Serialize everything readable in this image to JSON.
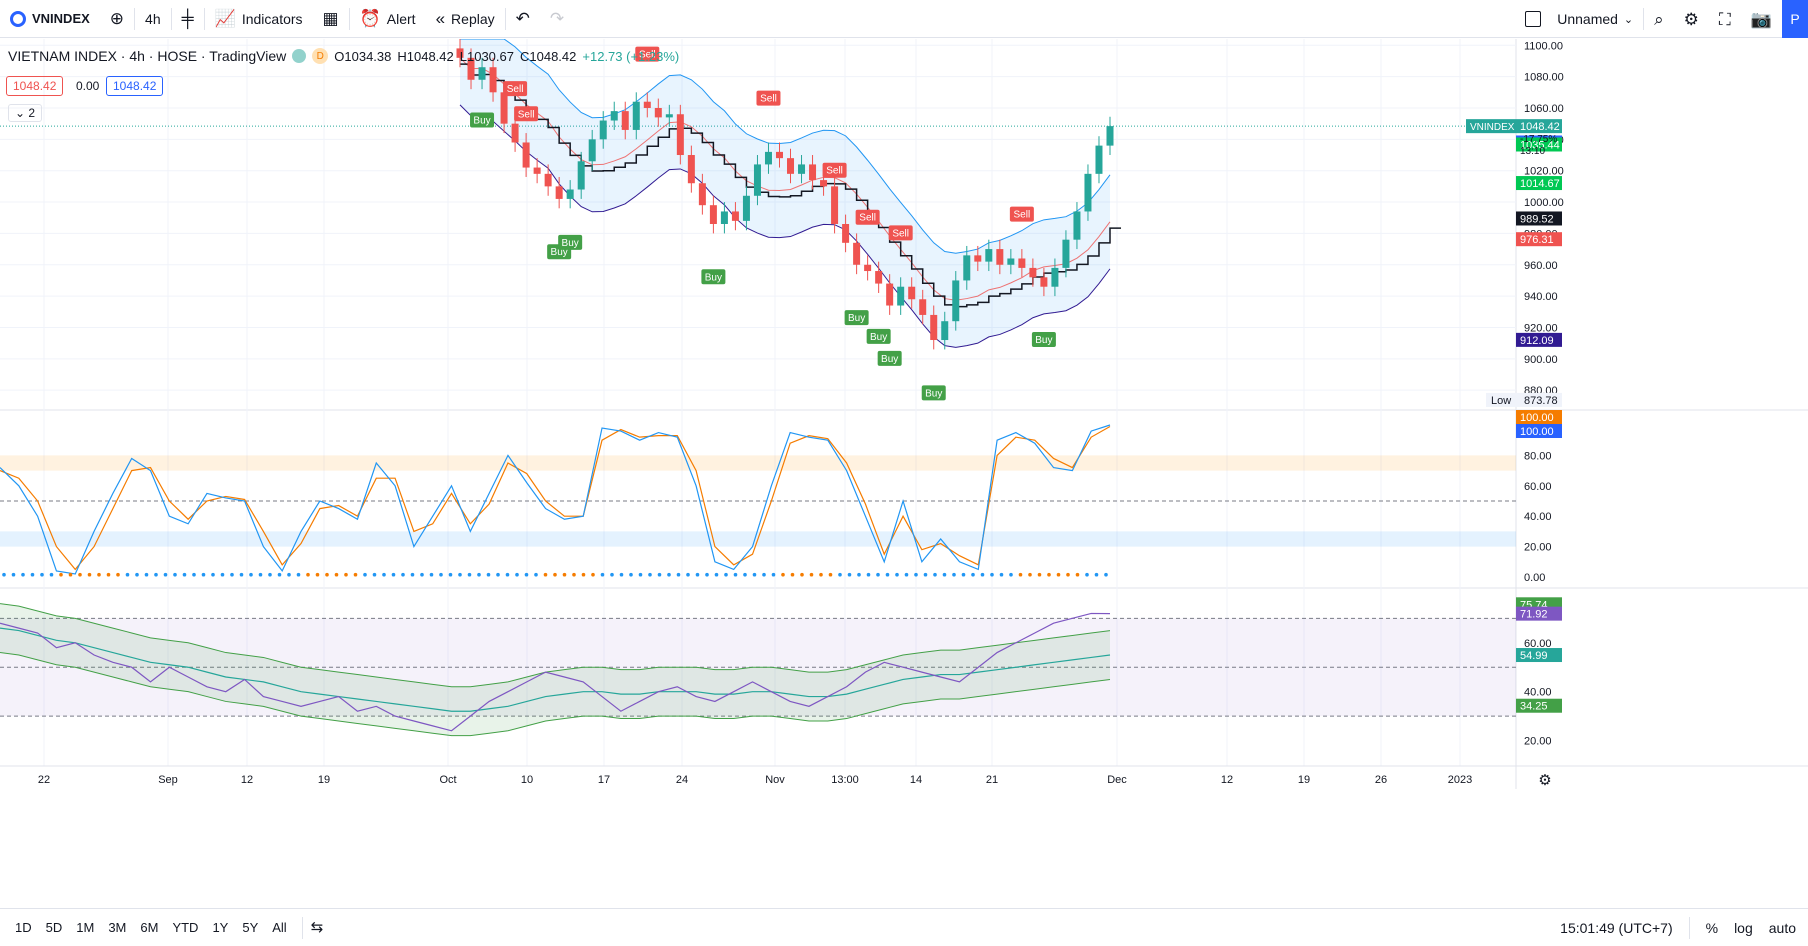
{
  "toolbar": {
    "symbol": "VNINDEX",
    "interval": "4h",
    "indicators_label": "Indicators",
    "alert_label": "Alert",
    "replay_label": "Replay",
    "layout_name": "Unnamed",
    "publish_label": "P"
  },
  "legend": {
    "title": "VIETNAM INDEX · 4h · HOSE · TradingView",
    "d_badge": "D",
    "open": "O1034.38",
    "high": "H1048.42",
    "low": "L1030.67",
    "close": "C1048.42",
    "change": "+12.73 (+1.23%)",
    "bid": "1048.42",
    "spread": "0.00",
    "ask": "1048.42",
    "indicator_count": "2"
  },
  "colors": {
    "up": "#26a69a",
    "down": "#ef5350",
    "accent": "#2962ff"
  },
  "chart_data": {
    "type": "candlestick",
    "symbol": "VNINDEX",
    "last_price": "1048.42",
    "last_change": "-17.75%",
    "countdown": "13:10",
    "price_axis": [
      "1100.00",
      "1080.00",
      "1060.00",
      "1040.00",
      "1020.00",
      "1000.00",
      "980.00",
      "960.00",
      "940.00",
      "920.00",
      "900.00",
      "880.00"
    ],
    "price_range": [
      868,
      1104
    ],
    "low_label": "Low",
    "low_value": "873.78",
    "price_badges": [
      {
        "v": 1048.42,
        "text": "1048.42",
        "color": "#26a69a"
      },
      {
        "v": 1040.54,
        "text": "1040.54",
        "color": "#2962ff"
      },
      {
        "v": 1035.44,
        "text": "1035.44",
        "color": "#00c853"
      },
      {
        "v": 1014.67,
        "text": "1014.67",
        "color": "#00c853"
      },
      {
        "v": 989.52,
        "text": "989.52",
        "color": "#131722"
      },
      {
        "v": 976.31,
        "text": "976.31",
        "color": "#ef5350"
      },
      {
        "v": 912.09,
        "text": "912.09",
        "color": "#311b92"
      }
    ],
    "closes": [
      1092,
      1078,
      1086,
      1070,
      1050,
      1038,
      1022,
      1018,
      1010,
      1002,
      1008,
      1026,
      1040,
      1052,
      1058,
      1046,
      1064,
      1060,
      1054,
      1056,
      1030,
      1012,
      998,
      986,
      994,
      988,
      1004,
      1024,
      1032,
      1028,
      1018,
      1024,
      1014,
      1010,
      986,
      974,
      960,
      956,
      948,
      934,
      946,
      938,
      928,
      912,
      924,
      950,
      966,
      962,
      970,
      960,
      964,
      958,
      952,
      946,
      958,
      976,
      994,
      1018,
      1036,
      1048.42
    ],
    "signals": [
      {
        "i": 2,
        "kind": "Buy"
      },
      {
        "i": 5,
        "kind": "Sell"
      },
      {
        "i": 6,
        "kind": "Sell"
      },
      {
        "i": 9,
        "kind": "Buy"
      },
      {
        "i": 10,
        "kind": "Buy"
      },
      {
        "i": 17,
        "kind": "Sell"
      },
      {
        "i": 23,
        "kind": "Buy"
      },
      {
        "i": 28,
        "kind": "Sell"
      },
      {
        "i": 34,
        "kind": "Sell"
      },
      {
        "i": 36,
        "kind": "Buy"
      },
      {
        "i": 37,
        "kind": "Sell"
      },
      {
        "i": 38,
        "kind": "Buy"
      },
      {
        "i": 39,
        "kind": "Buy"
      },
      {
        "i": 40,
        "kind": "Sell"
      },
      {
        "i": 43,
        "kind": "Buy"
      },
      {
        "i": 51,
        "kind": "Sell"
      },
      {
        "i": 53,
        "kind": "Buy"
      }
    ],
    "stoch": {
      "axis": [
        "100.00",
        "80.00",
        "60.00",
        "40.00",
        "20.00",
        "0.00"
      ],
      "badges": [
        {
          "v": 100,
          "text": "100.00",
          "color": "#f57c00"
        },
        {
          "v": 100,
          "text": "100.00",
          "color": "#2962ff"
        }
      ],
      "k": [
        72,
        60,
        40,
        4,
        2,
        30,
        55,
        78,
        70,
        40,
        35,
        55,
        52,
        50,
        20,
        4,
        30,
        50,
        45,
        38,
        75,
        60,
        20,
        40,
        60,
        30,
        55,
        80,
        62,
        45,
        38,
        40,
        98,
        96,
        90,
        95,
        92,
        60,
        10,
        5,
        20,
        60,
        95,
        92,
        90,
        70,
        40,
        10,
        50,
        10,
        25,
        10,
        5,
        90,
        95,
        88,
        72,
        70,
        96,
        100
      ],
      "d": [
        70,
        65,
        50,
        20,
        5,
        20,
        45,
        70,
        72,
        50,
        38,
        50,
        53,
        51,
        30,
        8,
        22,
        45,
        47,
        40,
        65,
        65,
        30,
        35,
        55,
        35,
        48,
        75,
        68,
        50,
        40,
        40,
        90,
        97,
        92,
        93,
        93,
        70,
        20,
        8,
        15,
        50,
        88,
        93,
        91,
        75,
        48,
        15,
        40,
        18,
        22,
        14,
        8,
        80,
        92,
        90,
        78,
        72,
        92,
        99
      ]
    },
    "rsi": {
      "axis": [
        "60.00",
        "40.00",
        "20.00"
      ],
      "range": [
        10,
        82
      ],
      "badges": [
        {
          "v": 75.74,
          "text": "75.74",
          "color": "#43a047"
        },
        {
          "v": 71.92,
          "text": "71.92",
          "color": "#7e57c2"
        },
        {
          "v": 54.99,
          "text": "54.99",
          "color": "#26a69a"
        },
        {
          "v": 34.25,
          "text": "34.25",
          "color": "#43a047"
        }
      ],
      "values": [
        68,
        66,
        64,
        58,
        60,
        55,
        52,
        50,
        44,
        50,
        46,
        42,
        40,
        45,
        38,
        36,
        34,
        36,
        38,
        32,
        34,
        30,
        28,
        26,
        24,
        30,
        36,
        40,
        44,
        48,
        46,
        44,
        38,
        32,
        36,
        40,
        42,
        38,
        36,
        40,
        44,
        40,
        36,
        34,
        38,
        42,
        48,
        52,
        50,
        48,
        46,
        44,
        50,
        56,
        60,
        64,
        68,
        70,
        72,
        71.92
      ],
      "ma": [
        66,
        65,
        63,
        61,
        60,
        58,
        56,
        54,
        52,
        51,
        50,
        48,
        46,
        45,
        44,
        42,
        40,
        39,
        38,
        37,
        36,
        35,
        34,
        33,
        32,
        32,
        33,
        34,
        36,
        38,
        39,
        40,
        40,
        39,
        39,
        40,
        40,
        40,
        39,
        39,
        40,
        40,
        39,
        38,
        38,
        39,
        41,
        43,
        45,
        46,
        47,
        47,
        48,
        49,
        50,
        51,
        52,
        53,
        54,
        54.99
      ]
    },
    "time_axis": [
      "22",
      "Sep",
      "12",
      "19",
      "Oct",
      "10",
      "17",
      "24",
      "Nov",
      "13:00",
      "14",
      "21",
      "Dec",
      "12",
      "19",
      "26",
      "2023"
    ]
  },
  "bottom": {
    "ranges": [
      "1D",
      "5D",
      "1M",
      "3M",
      "6M",
      "YTD",
      "1Y",
      "5Y",
      "All"
    ],
    "clock": "15:01:49 (UTC+7)",
    "percent": "%",
    "log": "log",
    "auto": "auto"
  },
  "icons": [
    "plus-circle-icon",
    "bar-style-icon",
    "indicators-icon",
    "templates-icon",
    "alert-icon",
    "replay-icon",
    "undo-icon",
    "redo-icon",
    "layout-square-icon",
    "search-icon",
    "gear-icon",
    "fullscreen-icon",
    "camera-icon",
    "settings-icon",
    "date-range-icon"
  ]
}
